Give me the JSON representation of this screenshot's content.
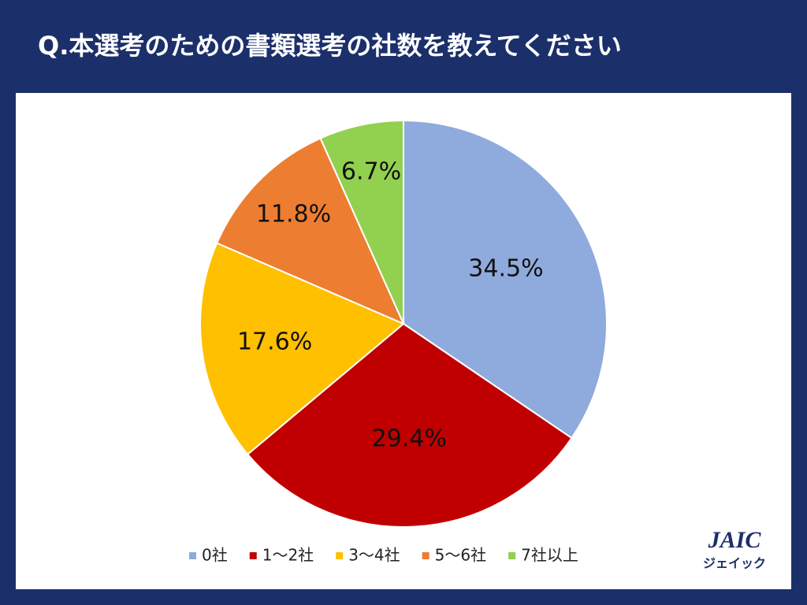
{
  "chart_data": {
    "type": "pie",
    "title": "Q.本選考のための書類選考の社数を教えてください",
    "categories": [
      "0社",
      "1～2社",
      "3～4社",
      "5～6社",
      "7社以上"
    ],
    "values": [
      34.5,
      29.4,
      17.6,
      11.8,
      6.7
    ],
    "value_labels": [
      "34.5%",
      "29.4%",
      "17.6%",
      "11.8%",
      "6.7%"
    ],
    "colors": [
      "#8faadc",
      "#c00000",
      "#ffc000",
      "#ed7d31",
      "#92d050"
    ],
    "legend": "bottom"
  },
  "logo": {
    "name": "JAIC",
    "kana": "ジェイック"
  }
}
